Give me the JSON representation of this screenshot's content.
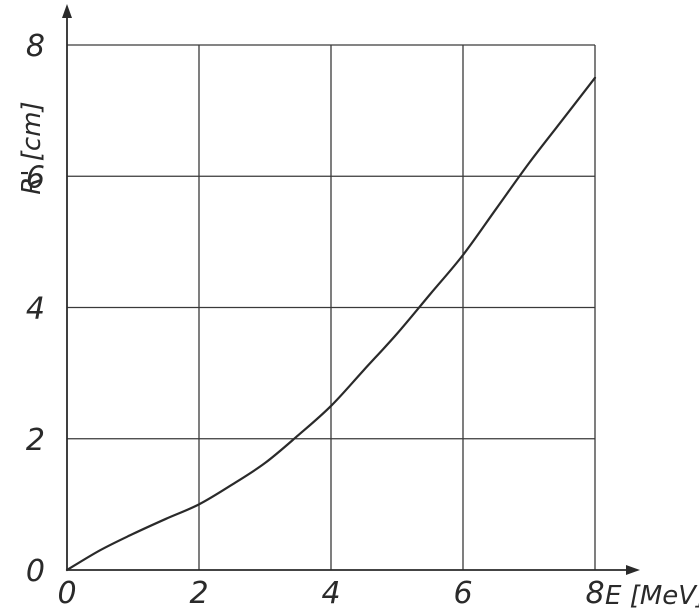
{
  "chart_data": {
    "type": "line",
    "title": "",
    "xlabel": "E [MeV]",
    "ylabel": "R' [cm]",
    "xlim": [
      0,
      8
    ],
    "ylim": [
      0,
      8
    ],
    "grid": true,
    "x_ticks": [
      "0",
      "2",
      "4",
      "6",
      "8"
    ],
    "y_ticks": [
      "0",
      "2",
      "4",
      "6",
      "8"
    ],
    "series": [
      {
        "x": [
          0,
          0.5,
          1,
          1.5,
          2,
          2.5,
          3,
          3.5,
          4,
          4.5,
          5,
          5.5,
          6,
          6.5,
          7,
          7.5,
          8
        ],
        "y": [
          0,
          0.3,
          0.55,
          0.78,
          1.0,
          1.3,
          1.63,
          2.05,
          2.5,
          3.05,
          3.6,
          4.2,
          4.8,
          5.5,
          6.2,
          6.85,
          7.5
        ]
      }
    ],
    "colors": {
      "line": "#2a2a2a",
      "grid": "#3a3a3a",
      "background": "#ffffff"
    }
  }
}
